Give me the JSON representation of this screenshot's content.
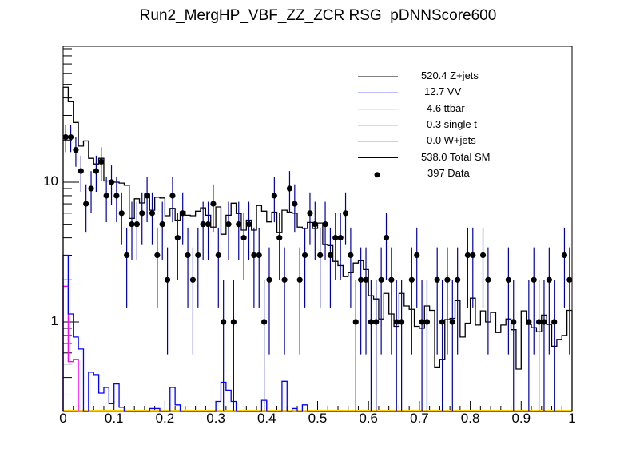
{
  "chart_data": {
    "type": "line",
    "title": "Run2_MergHP_VBF_ZZ_ZCR RSG  pDNNScore600",
    "xlabel": "",
    "ylabel": "",
    "xlim": [
      0,
      1
    ],
    "ylim": [
      0.229,
      93.6
    ],
    "yscale": "log",
    "nbins": 100,
    "x_tick_labels": [
      "0",
      "0.1",
      "0.2",
      "0.3",
      "0.4",
      "0.5",
      "0.6",
      "0.7",
      "0.8",
      "0.9",
      "1"
    ],
    "y_tick_labels": [
      {
        "value": 1,
        "label": "1"
      },
      {
        "value": 10,
        "label": "10"
      }
    ],
    "legend_position": "top-right",
    "legend": [
      {
        "label": "520.4 Z+jets",
        "color": "#000000",
        "style": "line"
      },
      {
        "label": "12.7 VV",
        "color": "#0000ff",
        "style": "line"
      },
      {
        "label": "4.6 ttbar",
        "color": "#ff00ff",
        "style": "line"
      },
      {
        "label": "0.3 single t",
        "color": "#66cc66",
        "style": "line"
      },
      {
        "label": "0.0 W+jets",
        "color": "#ffcc00",
        "style": "line"
      },
      {
        "label": "538.0 Total SM",
        "color": "#000000",
        "style": "line"
      },
      {
        "label": "397 Data",
        "color": "#000000",
        "style": "marker"
      }
    ],
    "series": [
      {
        "name": "Total SM",
        "color": "#000000",
        "values": [
          47.7,
          37.6,
          26.7,
          18.1,
          19.7,
          14.8,
          13.5,
          14.8,
          10.2,
          10.2,
          10.0,
          9.85,
          9.5,
          5.5,
          7.6,
          7.1,
          8.2,
          6.3,
          7.8,
          7.7,
          5.75,
          6.5,
          5.35,
          6.15,
          5.8,
          5.75,
          6.2,
          6.55,
          5.8,
          4.77,
          6.65,
          4.24,
          5.8,
          7.07,
          5.97,
          4.54,
          5.35,
          4.54,
          6.8,
          6.2,
          5.2,
          6.1,
          4.35,
          6.3,
          6.1,
          6.0,
          4.77,
          4.66,
          5.15,
          4.66,
          5.1,
          3.58,
          3.52,
          2.71,
          2.53,
          2.11,
          2.25,
          2.64,
          2.74,
          2.37,
          1.54,
          1.46,
          1.05,
          1.6,
          1.14,
          0.93,
          1.6,
          1.3,
          1.23,
          0.93,
          0.9,
          1.3,
          1.21,
          0.476,
          0.54,
          1.04,
          1.06,
          1.42,
          0.78,
          0.98,
          1.48,
          0.95,
          1.2,
          1.0,
          1.17,
          0.84,
          0.95,
          1.05,
          0.88,
          0.46,
          1.2,
          0.96,
          0.91,
          0.85,
          1.12,
          0.96,
          0.67,
          0.75,
          0.8,
          1.21
        ]
      },
      {
        "name": "VV",
        "color": "#0000ff",
        "values": [
          3.0,
          1.14,
          0.78,
          0.64,
          0,
          0.437,
          0.42,
          0.31,
          0.34,
          0.26,
          0.36,
          0.245,
          0,
          0,
          0,
          0,
          0,
          0.24,
          0.24,
          0,
          0,
          0.34,
          0.255,
          0,
          0,
          0,
          0,
          0,
          0,
          0,
          0.27,
          0.37,
          0.325,
          0.27,
          0,
          0,
          0,
          0,
          0,
          0.275,
          0,
          0,
          0,
          0.376,
          0,
          0.24,
          0,
          0.255,
          0,
          0,
          0,
          0,
          0,
          0,
          0,
          0,
          0,
          0,
          0,
          0,
          0,
          0,
          0,
          0,
          0,
          0,
          0,
          0,
          0,
          0,
          0,
          0,
          0,
          0,
          0,
          0,
          0,
          0,
          0,
          0,
          0,
          0,
          0,
          0,
          0,
          0,
          0,
          0,
          0,
          0,
          0,
          0,
          0,
          0,
          0,
          0,
          0,
          0,
          0,
          0
        ]
      },
      {
        "name": "ttbar",
        "color": "#ff00ff",
        "values": [
          1.8,
          0.52,
          0.54,
          0,
          0,
          0,
          0,
          0,
          0,
          0,
          0,
          0,
          0,
          0,
          0,
          0,
          0,
          0,
          0,
          0,
          0,
          0,
          0,
          0,
          0,
          0,
          0,
          0,
          0,
          0,
          0,
          0,
          0,
          0,
          0,
          0,
          0,
          0,
          0,
          0,
          0,
          0,
          0,
          0,
          0,
          0,
          0,
          0,
          0,
          0,
          0,
          0,
          0,
          0,
          0,
          0,
          0,
          0,
          0,
          0,
          0,
          0,
          0,
          0,
          0,
          0,
          0,
          0,
          0,
          0,
          0,
          0,
          0,
          0,
          0,
          0,
          0,
          0,
          0,
          0,
          0,
          0,
          0,
          0,
          0,
          0,
          0,
          0,
          0,
          0,
          0,
          0,
          0,
          0,
          0,
          0,
          0,
          0,
          0,
          0
        ]
      },
      {
        "name": "W+jets",
        "color": "#ffcc00",
        "values": "all-zero"
      },
      {
        "name": "Data",
        "color": "#000000",
        "error_color": "#0000a0",
        "values": [
          21,
          21,
          17,
          12,
          7,
          9,
          12,
          14,
          8,
          10,
          8,
          6,
          3,
          5,
          5,
          6,
          8,
          6,
          3,
          5,
          2,
          8,
          4,
          6,
          3,
          2,
          3,
          5,
          5,
          7,
          3,
          1,
          5,
          1,
          5,
          4,
          5,
          3,
          3,
          1,
          2,
          8,
          4,
          2,
          9,
          7,
          2,
          3,
          6,
          5,
          3,
          5,
          3,
          4,
          4,
          6,
          3,
          1,
          2,
          2,
          1,
          1,
          2,
          4,
          2,
          1,
          1,
          0,
          2,
          3,
          1,
          1,
          0,
          2,
          1,
          2,
          1,
          2,
          0,
          3,
          3,
          0,
          3,
          2,
          0,
          0,
          0,
          2,
          1,
          0,
          0,
          1,
          2,
          1,
          1,
          2,
          1,
          0,
          3,
          2
        ]
      }
    ]
  }
}
